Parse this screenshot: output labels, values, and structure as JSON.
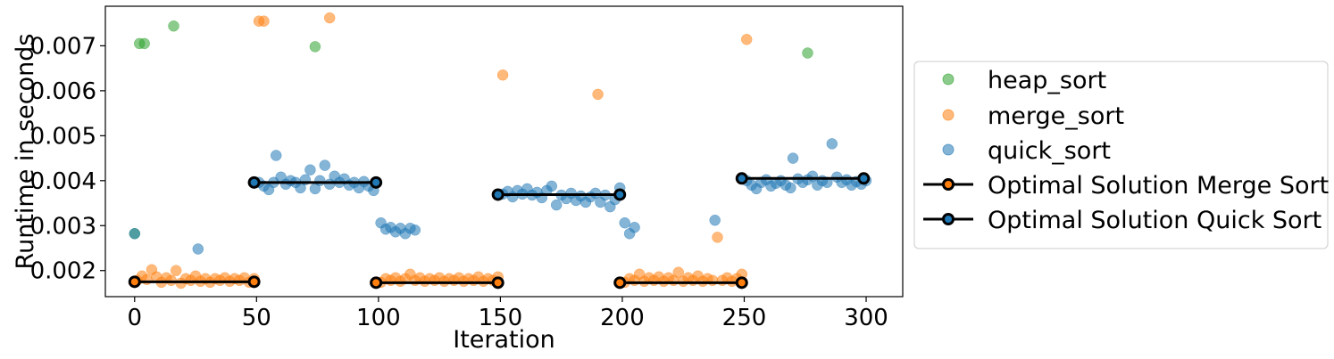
{
  "chart_data": {
    "type": "scatter",
    "title": "",
    "xlabel": "Iteration",
    "ylabel": "Runtime in seconds",
    "xlim": [
      -12,
      315
    ],
    "ylim": [
      0.00142,
      0.00788
    ],
    "xticks": [
      0,
      50,
      100,
      150,
      200,
      250,
      300
    ],
    "xtick_labels": [
      "0",
      "50",
      "100",
      "150",
      "200",
      "250",
      "300"
    ],
    "yticks": [
      0.002,
      0.003,
      0.004,
      0.005,
      0.006,
      0.007
    ],
    "ytick_labels": [
      "0.002",
      "0.003",
      "0.004",
      "0.005",
      "0.006",
      "0.007"
    ],
    "grid": false,
    "legend_position": "outside-right",
    "series": [
      {
        "name": "heap_sort",
        "kind": "points",
        "color": "#2ca02c",
        "points": [
          [
            2,
            0.00705
          ],
          [
            4,
            0.00705
          ],
          [
            16,
            0.00744
          ],
          [
            74,
            0.00698
          ],
          [
            276,
            0.00684
          ],
          [
            0,
            0.00282
          ]
        ]
      },
      {
        "name": "merge_sort",
        "kind": "points",
        "color": "#ff7f0e",
        "points": [
          [
            1,
            0.00178
          ],
          [
            3,
            0.00188
          ],
          [
            5,
            0.0018
          ],
          [
            7,
            0.00202
          ],
          [
            9,
            0.00186
          ],
          [
            11,
            0.00174
          ],
          [
            13,
            0.00184
          ],
          [
            15,
            0.00178
          ],
          [
            17,
            0.002
          ],
          [
            19,
            0.00172
          ],
          [
            21,
            0.00182
          ],
          [
            23,
            0.00178
          ],
          [
            25,
            0.00188
          ],
          [
            27,
            0.00176
          ],
          [
            29,
            0.00182
          ],
          [
            31,
            0.00174
          ],
          [
            33,
            0.00182
          ],
          [
            35,
            0.00178
          ],
          [
            37,
            0.00184
          ],
          [
            39,
            0.00176
          ],
          [
            41,
            0.00182
          ],
          [
            43,
            0.00178
          ],
          [
            45,
            0.00184
          ],
          [
            47,
            0.00174
          ],
          [
            49,
            0.00182
          ],
          [
            51,
            0.00755
          ],
          [
            53,
            0.00755
          ],
          [
            80,
            0.00762
          ],
          [
            101,
            0.00174
          ],
          [
            103,
            0.00182
          ],
          [
            105,
            0.00178
          ],
          [
            107,
            0.00184
          ],
          [
            109,
            0.00176
          ],
          [
            111,
            0.00182
          ],
          [
            113,
            0.00192
          ],
          [
            115,
            0.00178
          ],
          [
            117,
            0.00184
          ],
          [
            119,
            0.00176
          ],
          [
            121,
            0.00182
          ],
          [
            123,
            0.00178
          ],
          [
            125,
            0.00184
          ],
          [
            127,
            0.00176
          ],
          [
            129,
            0.00182
          ],
          [
            131,
            0.00178
          ],
          [
            133,
            0.00184
          ],
          [
            135,
            0.00176
          ],
          [
            137,
            0.00182
          ],
          [
            139,
            0.00178
          ],
          [
            141,
            0.00186
          ],
          [
            143,
            0.00176
          ],
          [
            145,
            0.00182
          ],
          [
            147,
            0.00178
          ],
          [
            149,
            0.00186
          ],
          [
            151,
            0.00635
          ],
          [
            190,
            0.00592
          ],
          [
            201,
            0.00174
          ],
          [
            203,
            0.00182
          ],
          [
            205,
            0.00178
          ],
          [
            207,
            0.00192
          ],
          [
            209,
            0.00176
          ],
          [
            211,
            0.00184
          ],
          [
            213,
            0.00178
          ],
          [
            215,
            0.00186
          ],
          [
            217,
            0.00176
          ],
          [
            219,
            0.00184
          ],
          [
            221,
            0.00178
          ],
          [
            223,
            0.00196
          ],
          [
            225,
            0.00176
          ],
          [
            227,
            0.00184
          ],
          [
            229,
            0.00178
          ],
          [
            231,
            0.00188
          ],
          [
            233,
            0.00176
          ],
          [
            235,
            0.00182
          ],
          [
            237,
            0.00178
          ],
          [
            239,
            0.00274
          ],
          [
            241,
            0.00178
          ],
          [
            243,
            0.00184
          ],
          [
            245,
            0.00176
          ],
          [
            247,
            0.00182
          ],
          [
            249,
            0.00192
          ],
          [
            251,
            0.00714
          ]
        ]
      },
      {
        "name": "quick_sort",
        "kind": "points",
        "color": "#1f77b4",
        "points": [
          [
            0,
            0.00282
          ],
          [
            26,
            0.00248
          ],
          [
            51,
            0.00396
          ],
          [
            53,
            0.00388
          ],
          [
            55,
            0.0038
          ],
          [
            57,
            0.00396
          ],
          [
            58,
            0.00456
          ],
          [
            60,
            0.00408
          ],
          [
            62,
            0.00392
          ],
          [
            64,
            0.004
          ],
          [
            66,
            0.00396
          ],
          [
            68,
            0.00384
          ],
          [
            70,
            0.00402
          ],
          [
            72,
            0.00424
          ],
          [
            74,
            0.00382
          ],
          [
            76,
            0.004
          ],
          [
            78,
            0.00434
          ],
          [
            80,
            0.00392
          ],
          [
            82,
            0.0041
          ],
          [
            84,
            0.00396
          ],
          [
            86,
            0.00404
          ],
          [
            88,
            0.0039
          ],
          [
            90,
            0.00396
          ],
          [
            92,
            0.00384
          ],
          [
            94,
            0.00398
          ],
          [
            96,
            0.00388
          ],
          [
            98,
            0.00378
          ],
          [
            101,
            0.00306
          ],
          [
            103,
            0.00292
          ],
          [
            105,
            0.00296
          ],
          [
            107,
            0.00286
          ],
          [
            109,
            0.00294
          ],
          [
            111,
            0.00282
          ],
          [
            113,
            0.00294
          ],
          [
            115,
            0.0029
          ],
          [
            151,
            0.0037
          ],
          [
            153,
            0.00376
          ],
          [
            155,
            0.00364
          ],
          [
            157,
            0.00378
          ],
          [
            159,
            0.0037
          ],
          [
            161,
            0.00382
          ],
          [
            163,
            0.00368
          ],
          [
            165,
            0.00374
          ],
          [
            167,
            0.00362
          ],
          [
            169,
            0.00378
          ],
          [
            171,
            0.00388
          ],
          [
            173,
            0.00346
          ],
          [
            175,
            0.00368
          ],
          [
            177,
            0.0036
          ],
          [
            179,
            0.00372
          ],
          [
            181,
            0.00356
          ],
          [
            183,
            0.00366
          ],
          [
            185,
            0.00352
          ],
          [
            187,
            0.00364
          ],
          [
            189,
            0.00372
          ],
          [
            191,
            0.00352
          ],
          [
            193,
            0.00368
          ],
          [
            195,
            0.00342
          ],
          [
            197,
            0.00358
          ],
          [
            199,
            0.00384
          ],
          [
            201,
            0.00306
          ],
          [
            203,
            0.00282
          ],
          [
            205,
            0.00296
          ],
          [
            238,
            0.00312
          ],
          [
            251,
            0.004
          ],
          [
            253,
            0.0039
          ],
          [
            255,
            0.00382
          ],
          [
            257,
            0.00396
          ],
          [
            259,
            0.00402
          ],
          [
            261,
            0.00388
          ],
          [
            263,
            0.00394
          ],
          [
            265,
            0.004
          ],
          [
            267,
            0.0039
          ],
          [
            269,
            0.00384
          ],
          [
            270,
            0.0045
          ],
          [
            272,
            0.00404
          ],
          [
            274,
            0.00396
          ],
          [
            276,
            0.00402
          ],
          [
            278,
            0.0041
          ],
          [
            280,
            0.0039
          ],
          [
            282,
            0.004
          ],
          [
            284,
            0.00396
          ],
          [
            286,
            0.00482
          ],
          [
            288,
            0.00408
          ],
          [
            290,
            0.00396
          ],
          [
            292,
            0.00402
          ],
          [
            294,
            0.0039
          ],
          [
            296,
            0.00398
          ],
          [
            298,
            0.00392
          ],
          [
            300,
            0.004
          ]
        ]
      },
      {
        "name": "Optimal Solution Merge Sort",
        "kind": "segments",
        "color": "#000000",
        "marker_fill": "#ff7f0e",
        "segments": [
          [
            [
              0,
              0.00175
            ],
            [
              49,
              0.00175
            ]
          ],
          [
            [
              99,
              0.00173
            ],
            [
              149,
              0.00173
            ]
          ],
          [
            [
              199,
              0.00173
            ],
            [
              249,
              0.00173
            ]
          ]
        ]
      },
      {
        "name": "Optimal Solution Quick Sort",
        "kind": "segments",
        "color": "#000000",
        "marker_fill": "#1f77b4",
        "segments": [
          [
            [
              49,
              0.00396
            ],
            [
              99,
              0.00396
            ]
          ],
          [
            [
              149,
              0.00369
            ],
            [
              199,
              0.00369
            ]
          ],
          [
            [
              249,
              0.00405
            ],
            [
              299,
              0.00405
            ]
          ]
        ]
      }
    ]
  }
}
